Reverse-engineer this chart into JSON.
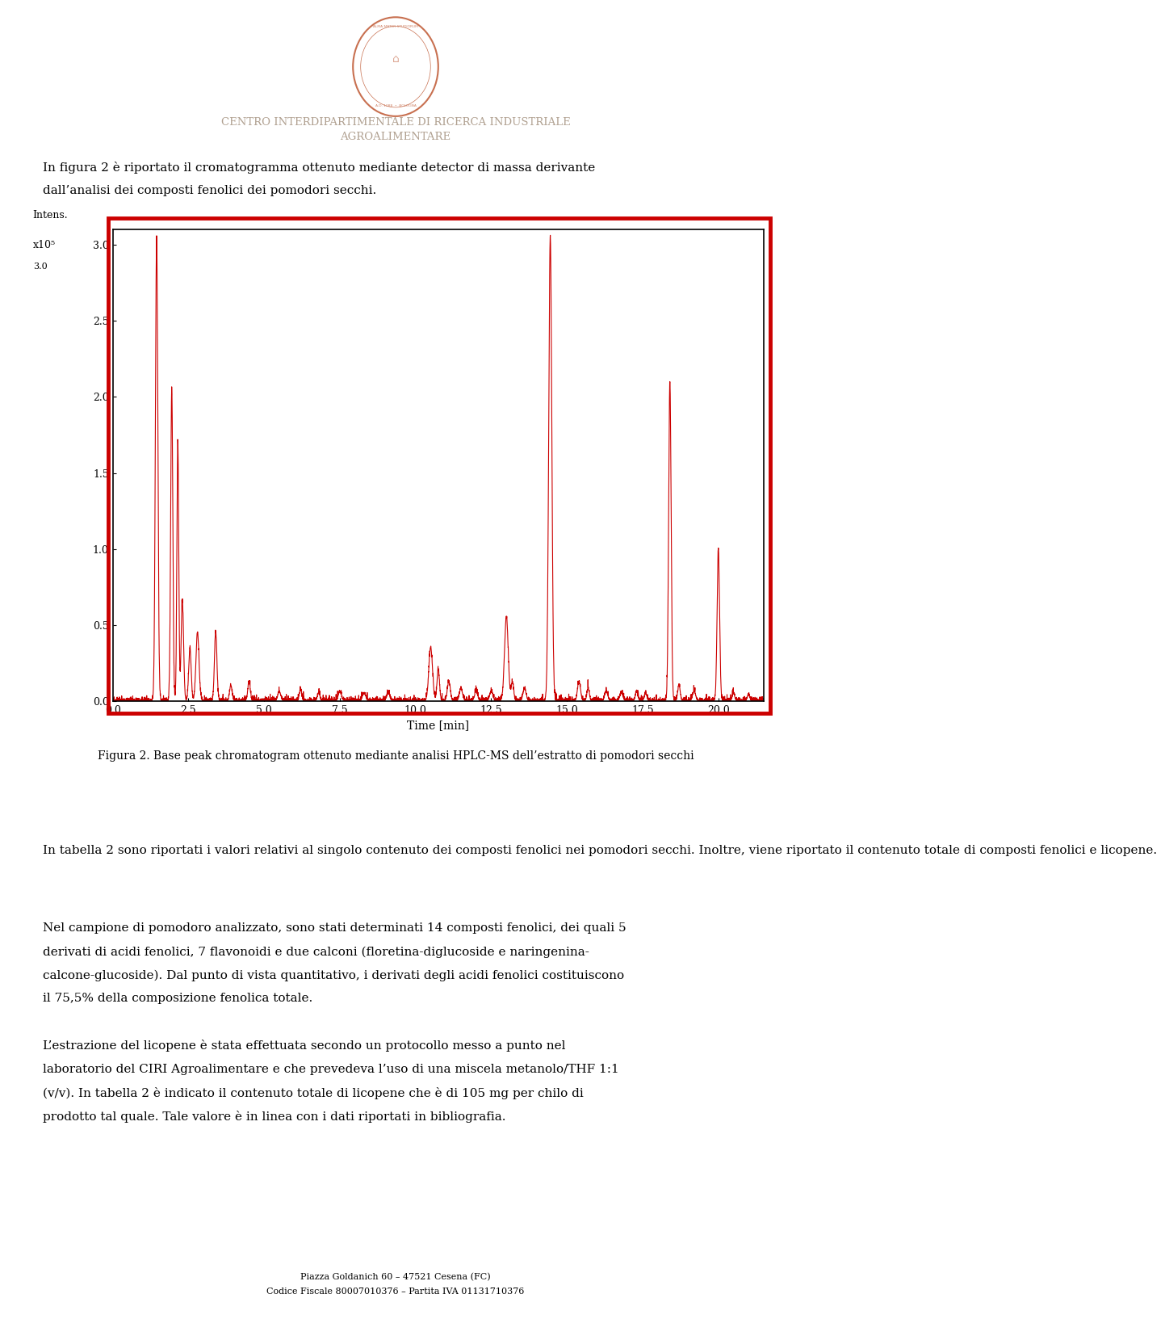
{
  "page_width": 9.6,
  "page_height": 16.13,
  "background_color": "#ffffff",
  "logo_color": "#c87050",
  "header_line1": "CENTRO INTERDIPARTIMENTALE DI RICERCA INDUSTRIALE",
  "header_line2": "AGROALIMENTARE",
  "header_color": "#b0a090",
  "header_fontsize": 9.5,
  "body_text1_line1": "In figura 2 è riportato il cromatogramma ottenuto mediante detector di massa derivante",
  "body_text1_line2": "dall’analisi dei composti fenolici dei pomodori secchi.",
  "body_fontsize": 11,
  "plot_ylabel": "Intens.",
  "plot_ylabel2": "x10⁵",
  "plot_xlabel": "Time [min]",
  "plot_ylim": [
    0.0,
    3.1
  ],
  "plot_xlim": [
    0.0,
    21.5
  ],
  "plot_yticks": [
    0.0,
    0.5,
    1.0,
    1.5,
    2.0,
    2.5,
    3.0
  ],
  "plot_xticks": [
    0.0,
    2.5,
    5.0,
    7.5,
    10.0,
    12.5,
    15.0,
    17.5,
    20.0
  ],
  "plot_line_color": "#cc0000",
  "plot_border_color": "#000000",
  "plot_outer_border_color": "#cc0000",
  "figure_caption_bold": "Figura 2.",
  "figure_caption_rest": " Base peak chromatogram ottenuto mediante analisi HPLC-MS dell’estratto di pomodori secchi",
  "body_text2": "In tabella 2 sono riportati i valori relativi al singolo contenuto dei composti fenolici nei pomodori secchi. Inoltre, viene riportato il contenuto totale di composti fenolici e licopene.",
  "body_text3_line1": "Nel campione di pomodoro analizzato, sono stati determinati 14 composti fenolici, dei quali 5",
  "body_text3_line2": "derivati di acidi fenolici, 7 flavonoidi e due calconi (floretina-diglucoside e naringenina-",
  "body_text3_line3": "calcone-glucoside). Dal punto di vista quantitativo, i derivati degli acidi fenolici costituiscono",
  "body_text3_line4": "il 75,5% della composizione fenolica totale.",
  "body_text4_line1": "L’estrazione del licopene è stata effettuata secondo un protocollo messo a punto nel",
  "body_text4_line2": "laboratorio del CIRI Agroalimentare e che prevedeva l’uso di una miscela metanolo/THF 1:1",
  "body_text4_line3": "(v/v). In tabella 2 è indicato il contenuto totale di licopene che è di 105 mg per chilo di",
  "body_text4_line4": "prodotto tal quale. Tale valore è in linea con i dati riportati in bibliografia.",
  "footer_line1": "Piazza Goldanich 60 – 47521 Cesena (FC)",
  "footer_line2": "Codice Fiscale 80007010376 – Partita IVA 01131710376",
  "footer_fontsize": 8
}
